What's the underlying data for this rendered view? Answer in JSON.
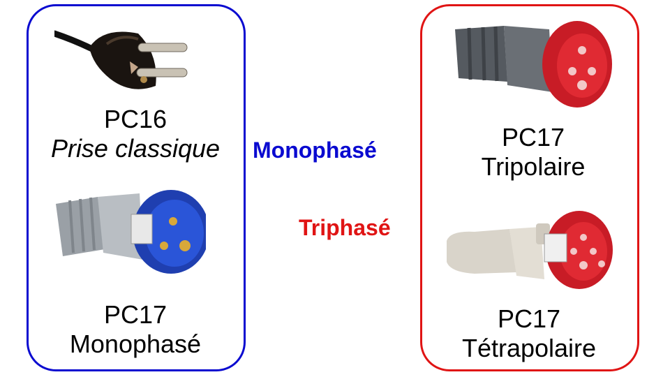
{
  "categories": {
    "monophase": {
      "label": "Monophasé",
      "color": "#0a0ad0"
    },
    "triphase": {
      "label": "Triphasé",
      "color": "#e01414"
    }
  },
  "plugs": {
    "pc16": {
      "name": "PC16",
      "desc": "Prise classique"
    },
    "pc17_mono": {
      "name": "PC17",
      "desc": "Monophasé"
    },
    "pc17_tri": {
      "name": "PC17",
      "desc": "Tripolaire"
    },
    "pc17_tetra": {
      "name": "PC17",
      "desc": "Tétrapolaire"
    }
  }
}
